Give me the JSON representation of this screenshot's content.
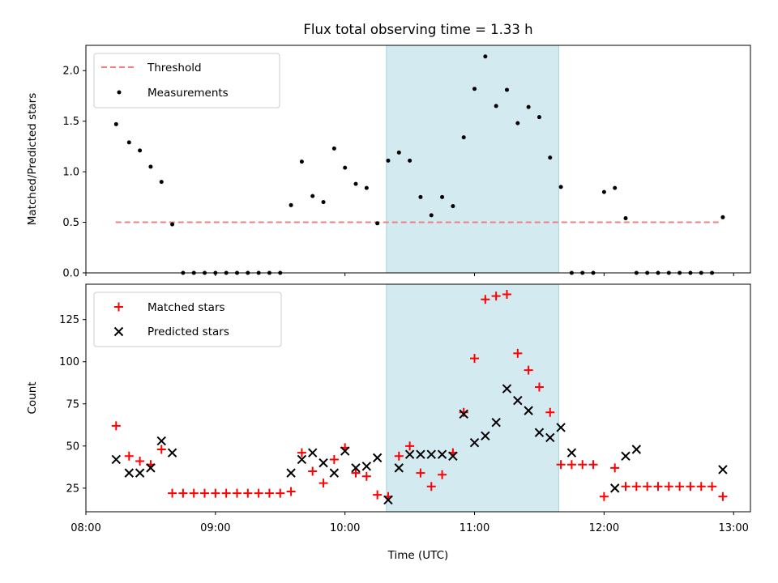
{
  "chart_data": {
    "type": "scatter",
    "title": "Flux total observing time = 1.33 h",
    "xlabel": "Time (UTC)",
    "x_ticks": [
      "08:00",
      "09:00",
      "10:00",
      "11:00",
      "12:00",
      "13:00"
    ],
    "xlim_hours": [
      8.0,
      13.13
    ],
    "shaded_span_hours": [
      10.32,
      11.65
    ],
    "shade_color": "#d3eaf0",
    "times": [
      "08:14",
      "08:20",
      "08:25",
      "08:30",
      "08:35",
      "08:40",
      "08:45",
      "08:50",
      "08:55",
      "09:00",
      "09:05",
      "09:10",
      "09:15",
      "09:20",
      "09:25",
      "09:30",
      "09:35",
      "09:40",
      "09:45",
      "09:50",
      "09:55",
      "10:00",
      "10:05",
      "10:10",
      "10:15",
      "10:20",
      "10:25",
      "10:30",
      "10:35",
      "10:40",
      "10:45",
      "10:50",
      "10:55",
      "11:00",
      "11:05",
      "11:10",
      "11:15",
      "11:20",
      "11:25",
      "11:30",
      "11:35",
      "11:40",
      "11:45",
      "11:50",
      "11:55",
      "12:00",
      "12:05",
      "12:10",
      "12:15",
      "12:20",
      "12:25",
      "12:30",
      "12:35",
      "12:40",
      "12:45",
      "12:50",
      "12:55"
    ],
    "panels": [
      {
        "ylabel": "Matched/Predicted stars",
        "ylim": [
          0,
          2.25
        ],
        "yticks": [
          "0.0",
          "0.5",
          "1.0",
          "1.5",
          "2.0"
        ],
        "threshold": {
          "name": "Threshold",
          "value": 0.5,
          "x_range_hours": [
            8.23,
            12.9
          ],
          "color": "#f08080"
        },
        "series": [
          {
            "name": "Measurements",
            "marker": "dot",
            "color": "#000000",
            "values": [
              1.47,
              1.29,
              1.21,
              1.05,
              0.9,
              0.48,
              0,
              0,
              0,
              0,
              0,
              0,
              0,
              0,
              0,
              0,
              0.67,
              1.1,
              0.76,
              0.7,
              1.23,
              1.04,
              0.88,
              0.84,
              0.49,
              1.11,
              1.19,
              1.11,
              0.75,
              0.57,
              0.75,
              0.66,
              1.34,
              1.82,
              2.14,
              1.65,
              1.81,
              1.48,
              1.64,
              1.54,
              1.14,
              0.85,
              0,
              0,
              0,
              0.8,
              0.84,
              0.54,
              0,
              0,
              0,
              0,
              0,
              0,
              0,
              0,
              0.55
            ]
          }
        ]
      },
      {
        "ylabel": "Count",
        "ylim": [
          11,
          146
        ],
        "yticks": [
          "25",
          "50",
          "75",
          "100",
          "125"
        ],
        "series": [
          {
            "name": "Matched stars",
            "marker": "plus",
            "color": "#ff0000",
            "values": [
              62,
              44,
              41,
              39,
              48,
              22,
              22,
              22,
              22,
              22,
              22,
              22,
              22,
              22,
              22,
              22,
              23,
              46,
              35,
              28,
              42,
              49,
              34,
              32,
              21,
              20,
              44,
              50,
              34,
              26,
              33,
              46,
              70,
              102,
              137,
              139,
              140,
              105,
              95,
              85,
              70,
              39,
              39,
              39,
              39,
              20,
              37,
              26,
              26,
              26,
              26,
              26,
              26,
              26,
              26,
              26,
              20
            ]
          },
          {
            "name": "Predicted stars",
            "marker": "x",
            "color": "#000000",
            "values": [
              42,
              34,
              34,
              37,
              53,
              46,
              null,
              null,
              null,
              null,
              null,
              null,
              null,
              null,
              null,
              null,
              34,
              42,
              46,
              40,
              34,
              47,
              37,
              38,
              43,
              18,
              37,
              45,
              45,
              45,
              45,
              44,
              69,
              52,
              56,
              64,
              84,
              77,
              71,
              58,
              55,
              61,
              46,
              null,
              null,
              null,
              25,
              44,
              48,
              null,
              null,
              null,
              null,
              null,
              null,
              null,
              36
            ]
          }
        ]
      }
    ]
  }
}
